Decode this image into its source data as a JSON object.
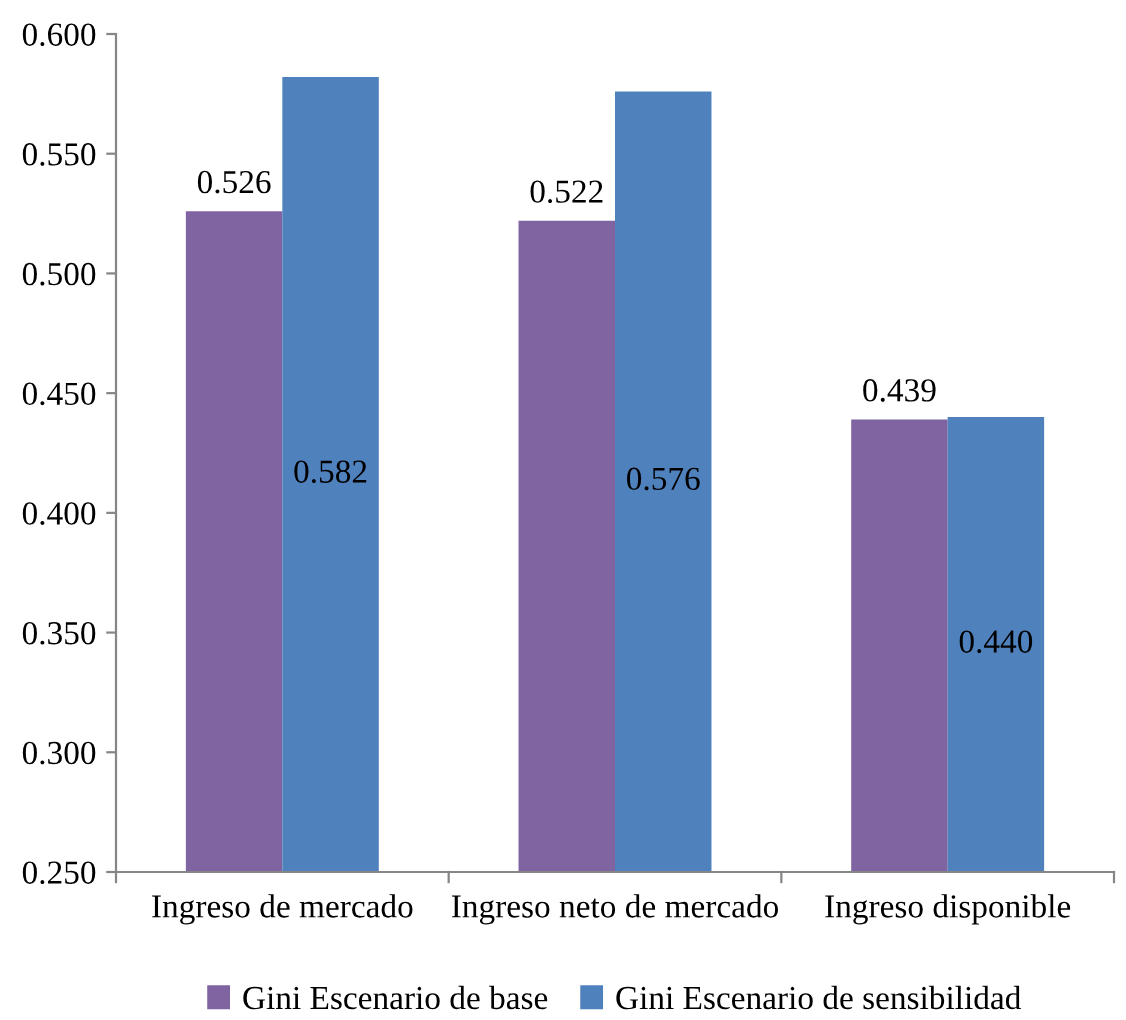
{
  "chart_data": {
    "type": "bar",
    "categories": [
      "Ingreso de mercado",
      "Ingreso neto de mercado",
      "Ingreso disponible"
    ],
    "series": [
      {
        "name": "Gini Escenario de base",
        "color": "#8064a2",
        "values": [
          0.526,
          0.522,
          0.439
        ],
        "value_labels": [
          "0.526",
          "0.522",
          "0.439"
        ]
      },
      {
        "name": "Gini Escenario de sensibilidad",
        "color": "#4f81bd",
        "values": [
          0.582,
          0.576,
          0.44
        ],
        "value_labels": [
          "0.582",
          "0.576",
          "0.440"
        ]
      }
    ],
    "ylim": [
      0.25,
      0.6
    ],
    "yticks": [
      {
        "value": 0.25,
        "label": "0.250"
      },
      {
        "value": 0.3,
        "label": "0.300"
      },
      {
        "value": 0.35,
        "label": "0.350"
      },
      {
        "value": 0.4,
        "label": "0.400"
      },
      {
        "value": 0.45,
        "label": "0.450"
      },
      {
        "value": 0.5,
        "label": "0.500"
      },
      {
        "value": 0.55,
        "label": "0.550"
      },
      {
        "value": 0.6,
        "label": "0.600"
      }
    ],
    "grid": false,
    "legend": "bottom"
  }
}
